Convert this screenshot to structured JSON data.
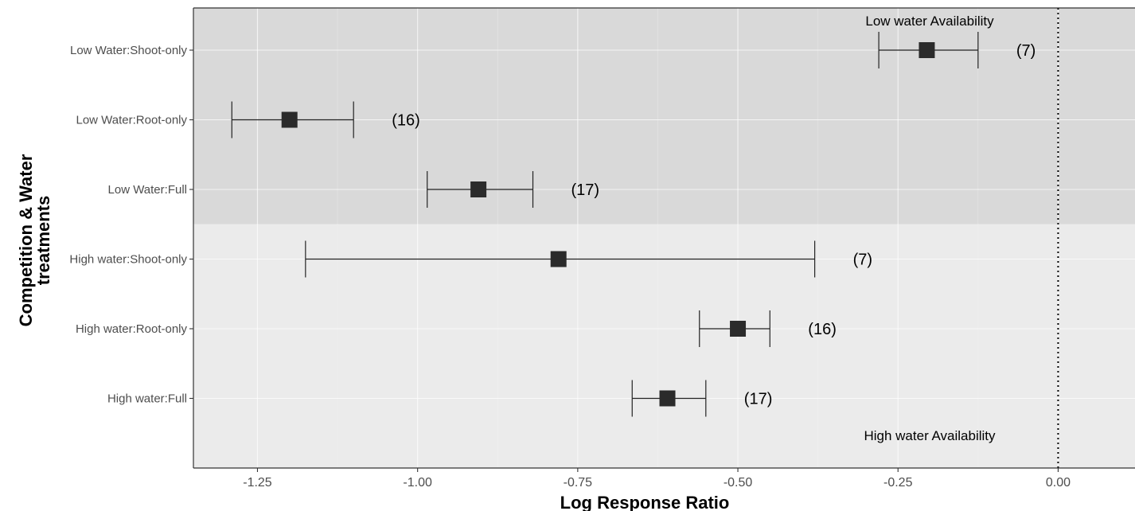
{
  "chart_data": {
    "type": "forest",
    "xlabel": "Log Response Ratio",
    "ylabel_lines": [
      "Competition & Water",
      "treatments"
    ],
    "xlim": [
      -1.35,
      0.12
    ],
    "xticks": [
      -1.25,
      -1.0,
      -0.75,
      -0.5,
      -0.25,
      0.0
    ],
    "xtick_labels": [
      "-1.25",
      "-1.00",
      "-0.75",
      "-0.50",
      "-0.25",
      "0.00"
    ],
    "reference_line": {
      "x": 0.0,
      "style": "dotted"
    },
    "regions": [
      {
        "name": "low",
        "label": "Low water Availability",
        "color": "#d9d9d9"
      },
      {
        "name": "high",
        "label": "High water Availability",
        "color": "#ebebeb"
      }
    ],
    "points": [
      {
        "category": "Low Water:Shoot-only",
        "region": "low",
        "estimate": -0.205,
        "lower": -0.28,
        "upper": -0.125,
        "n_label": "(7)"
      },
      {
        "category": "Low Water:Root-only",
        "region": "low",
        "estimate": -1.2,
        "lower": -1.29,
        "upper": -1.1,
        "n_label": "(16)"
      },
      {
        "category": "Low Water:Full",
        "region": "low",
        "estimate": -0.905,
        "lower": -0.985,
        "upper": -0.82,
        "n_label": "(17)"
      },
      {
        "category": "High water:Shoot-only",
        "region": "high",
        "estimate": -0.78,
        "lower": -1.175,
        "upper": -0.38,
        "n_label": "(7)"
      },
      {
        "category": "High water:Root-only",
        "region": "high",
        "estimate": -0.5,
        "lower": -0.56,
        "upper": -0.45,
        "n_label": "(16)"
      },
      {
        "category": "High water:Full",
        "region": "high",
        "estimate": -0.61,
        "lower": -0.665,
        "upper": -0.55,
        "n_label": "(17)"
      }
    ],
    "grid": true,
    "point_color": "#2b2b2b"
  }
}
